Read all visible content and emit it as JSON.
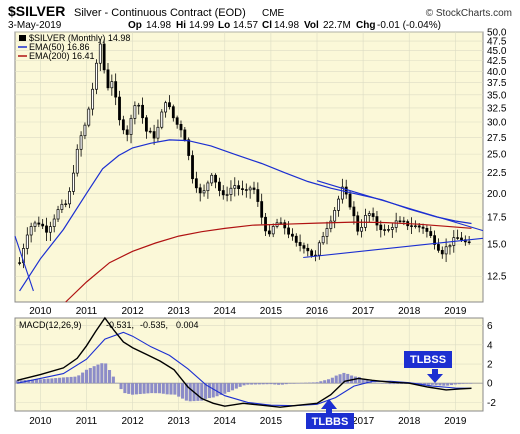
{
  "header": {
    "symbol": "$SILVER",
    "description": "Silver - Continuous Contract (EOD)",
    "exchange": "CME",
    "copyright": "© StockCharts.com",
    "date": "3-May-2019",
    "op_label": "Op",
    "op": "14.98",
    "hi_label": "Hi",
    "hi": "14.99",
    "lo_label": "Lo",
    "lo": "14.57",
    "cl_label": "Cl",
    "cl": "14.98",
    "vol_label": "Vol",
    "vol": "22.7M",
    "chg_label": "Chg",
    "chg": "-0.01 (-0.04%)"
  },
  "legend": {
    "price": "$SILVER (Monthly) 14.98",
    "ema50": "EMA(50) 16.86",
    "ema200": "EMA(200) 16.41"
  },
  "macd_legend": {
    "label": "MACD(12,26,9)",
    "macd": "-0.531,",
    "signal": "-0.535,",
    "hist": "0.004"
  },
  "annotations": {
    "tlbss": "TLBSS",
    "tlbbs": "TLBBS"
  },
  "colors": {
    "plot_bg": "#fbf8d8",
    "grid": "#dcdcc4",
    "candle": "#000000",
    "ema50": "#1c2fd1",
    "ema200": "#b01212",
    "trendline": "#1c2fd1",
    "macd": "#000000",
    "signal": "#1c2fd1",
    "histogram": "#8c8cc8",
    "annotation_bg": "#1c2fd1",
    "annotation_text": "#ffffff"
  },
  "chart_data": [
    {
      "type": "candlestick",
      "title": "$SILVER Silver - Continuous Contract (EOD)",
      "x_labels": [
        "2010",
        "2011",
        "2012",
        "2013",
        "2014",
        "2015",
        "2016",
        "2017",
        "2018",
        "2019"
      ],
      "y_ticks": [
        12.5,
        15.0,
        17.5,
        20.0,
        22.5,
        25.0,
        27.5,
        30.0,
        32.5,
        35.0,
        37.5,
        40.0,
        42.5,
        45.0,
        47.5,
        50.0
      ],
      "y_scale": "log",
      "ylim": [
        10.8,
        50.0
      ],
      "xlim": [
        2009.45,
        2019.6
      ],
      "grid": true,
      "monthly_close_anchors": [
        [
          2009.55,
          13.5
        ],
        [
          2009.75,
          16.5
        ],
        [
          2009.95,
          17.0
        ],
        [
          2010.15,
          16.2
        ],
        [
          2010.4,
          18.3
        ],
        [
          2010.6,
          19.0
        ],
        [
          2010.85,
          27.0
        ],
        [
          2011.0,
          30.0
        ],
        [
          2011.15,
          37.0
        ],
        [
          2011.32,
          48.0
        ],
        [
          2011.42,
          36.0
        ],
        [
          2011.55,
          38.0
        ],
        [
          2011.72,
          30.0
        ],
        [
          2011.9,
          28.0
        ],
        [
          2012.08,
          34.5
        ],
        [
          2012.3,
          28.5
        ],
        [
          2012.5,
          27.5
        ],
        [
          2012.72,
          34.0
        ],
        [
          2012.92,
          30.0
        ],
        [
          2013.1,
          28.5
        ],
        [
          2013.3,
          22.0
        ],
        [
          2013.5,
          19.5
        ],
        [
          2013.72,
          22.5
        ],
        [
          2013.95,
          19.5
        ],
        [
          2014.2,
          21.0
        ],
        [
          2014.45,
          20.0
        ],
        [
          2014.6,
          21.0
        ],
        [
          2014.8,
          17.5
        ],
        [
          2014.95,
          15.5
        ],
        [
          2015.1,
          17.0
        ],
        [
          2015.3,
          16.5
        ],
        [
          2015.55,
          15.0
        ],
        [
          2015.75,
          14.8
        ],
        [
          2015.95,
          13.8
        ],
        [
          2016.1,
          15.5
        ],
        [
          2016.35,
          17.8
        ],
        [
          2016.55,
          20.5
        ],
        [
          2016.7,
          19.0
        ],
        [
          2016.9,
          16.0
        ],
        [
          2017.1,
          18.0
        ],
        [
          2017.3,
          16.8
        ],
        [
          2017.5,
          16.0
        ],
        [
          2017.7,
          17.0
        ],
        [
          2017.95,
          16.8
        ],
        [
          2018.1,
          16.6
        ],
        [
          2018.3,
          16.5
        ],
        [
          2018.5,
          15.5
        ],
        [
          2018.7,
          14.3
        ],
        [
          2018.95,
          15.3
        ],
        [
          2019.1,
          15.6
        ],
        [
          2019.25,
          15.0
        ],
        [
          2019.35,
          14.98
        ]
      ],
      "series": [
        {
          "name": "EMA(50)",
          "x": [
            2009.55,
            2010.0,
            2010.5,
            2011.0,
            2011.35,
            2011.7,
            2012.0,
            2012.4,
            2012.8,
            2013.2,
            2013.7,
            2014.2,
            2014.8,
            2015.3,
            2015.8,
            2016.3,
            2016.8,
            2017.4,
            2018.0,
            2018.6,
            2019.0,
            2019.35
          ],
          "y": [
            11.5,
            13.8,
            16.3,
            20.0,
            23.0,
            24.8,
            25.9,
            26.6,
            27.1,
            27.0,
            26.2,
            25.0,
            23.7,
            22.5,
            21.4,
            20.6,
            20.0,
            19.3,
            18.3,
            17.5,
            17.1,
            16.86
          ]
        },
        {
          "name": "EMA(200)",
          "x": [
            2010.55,
            2011.0,
            2011.5,
            2012.0,
            2012.5,
            2013.0,
            2013.5,
            2014.0,
            2014.6,
            2015.3,
            2016.0,
            2016.8,
            2017.5,
            2018.2,
            2018.8,
            2019.35
          ],
          "y": [
            10.8,
            12.1,
            13.5,
            14.4,
            15.1,
            15.7,
            16.1,
            16.4,
            16.7,
            16.8,
            16.9,
            17.0,
            16.95,
            16.8,
            16.6,
            16.41
          ]
        }
      ],
      "trendlines": [
        {
          "x": [
            2009.45,
            2009.85
          ],
          "y": [
            15.7,
            11.5
          ]
        },
        {
          "x": [
            2016.0,
            2019.6
          ],
          "y": [
            21.5,
            16.2
          ]
        },
        {
          "x": [
            2015.7,
            2019.6
          ],
          "y": [
            13.9,
            15.5
          ]
        }
      ]
    },
    {
      "type": "line",
      "title": "MACD(12,26,9)",
      "x_labels": [
        "2010",
        "2011",
        "2012",
        "2013",
        "2014",
        "2015",
        "2016",
        "2017",
        "2018",
        "2019"
      ],
      "y_ticks": [
        -2,
        0,
        2,
        4,
        6
      ],
      "ylim": [
        -2.9,
        6.8
      ],
      "xlim": [
        2009.45,
        2019.6
      ],
      "series": [
        {
          "name": "MACD",
          "x": [
            2009.5,
            2010.0,
            2010.5,
            2010.8,
            2011.0,
            2011.2,
            2011.4,
            2011.6,
            2011.8,
            2012.0,
            2012.3,
            2012.6,
            2012.9,
            2013.2,
            2013.5,
            2013.75,
            2014.0,
            2014.4,
            2014.8,
            2015.2,
            2015.6,
            2016.0,
            2016.3,
            2016.6,
            2016.9,
            2017.2,
            2017.6,
            2018.0,
            2018.4,
            2018.8,
            2019.1,
            2019.35
          ],
          "y": [
            0.3,
            0.9,
            1.6,
            2.6,
            3.9,
            5.4,
            6.8,
            5.5,
            4.3,
            3.7,
            3.0,
            2.3,
            1.4,
            -0.4,
            -1.6,
            -2.1,
            -2.4,
            -2.1,
            -2.3,
            -2.5,
            -2.3,
            -2.1,
            -1.2,
            0.2,
            0.5,
            0.3,
            0.1,
            0.0,
            -0.4,
            -0.7,
            -0.6,
            -0.531
          ]
        },
        {
          "name": "Signal",
          "x": [
            2009.5,
            2010.0,
            2010.5,
            2011.0,
            2011.4,
            2011.8,
            2012.0,
            2012.4,
            2012.8,
            2013.2,
            2013.6,
            2014.0,
            2014.5,
            2015.0,
            2015.5,
            2016.0,
            2016.4,
            2016.8,
            2017.2,
            2017.6,
            2018.0,
            2018.5,
            2019.0,
            2019.35
          ],
          "y": [
            0.0,
            0.5,
            1.0,
            2.5,
            4.6,
            5.3,
            4.9,
            3.8,
            2.9,
            1.5,
            -0.2,
            -1.3,
            -2.0,
            -2.3,
            -2.35,
            -2.2,
            -1.5,
            -0.3,
            0.2,
            0.2,
            0.05,
            -0.3,
            -0.5,
            -0.535
          ]
        }
      ],
      "histogram_note": "histogram = MACD - Signal at each bar"
    }
  ]
}
